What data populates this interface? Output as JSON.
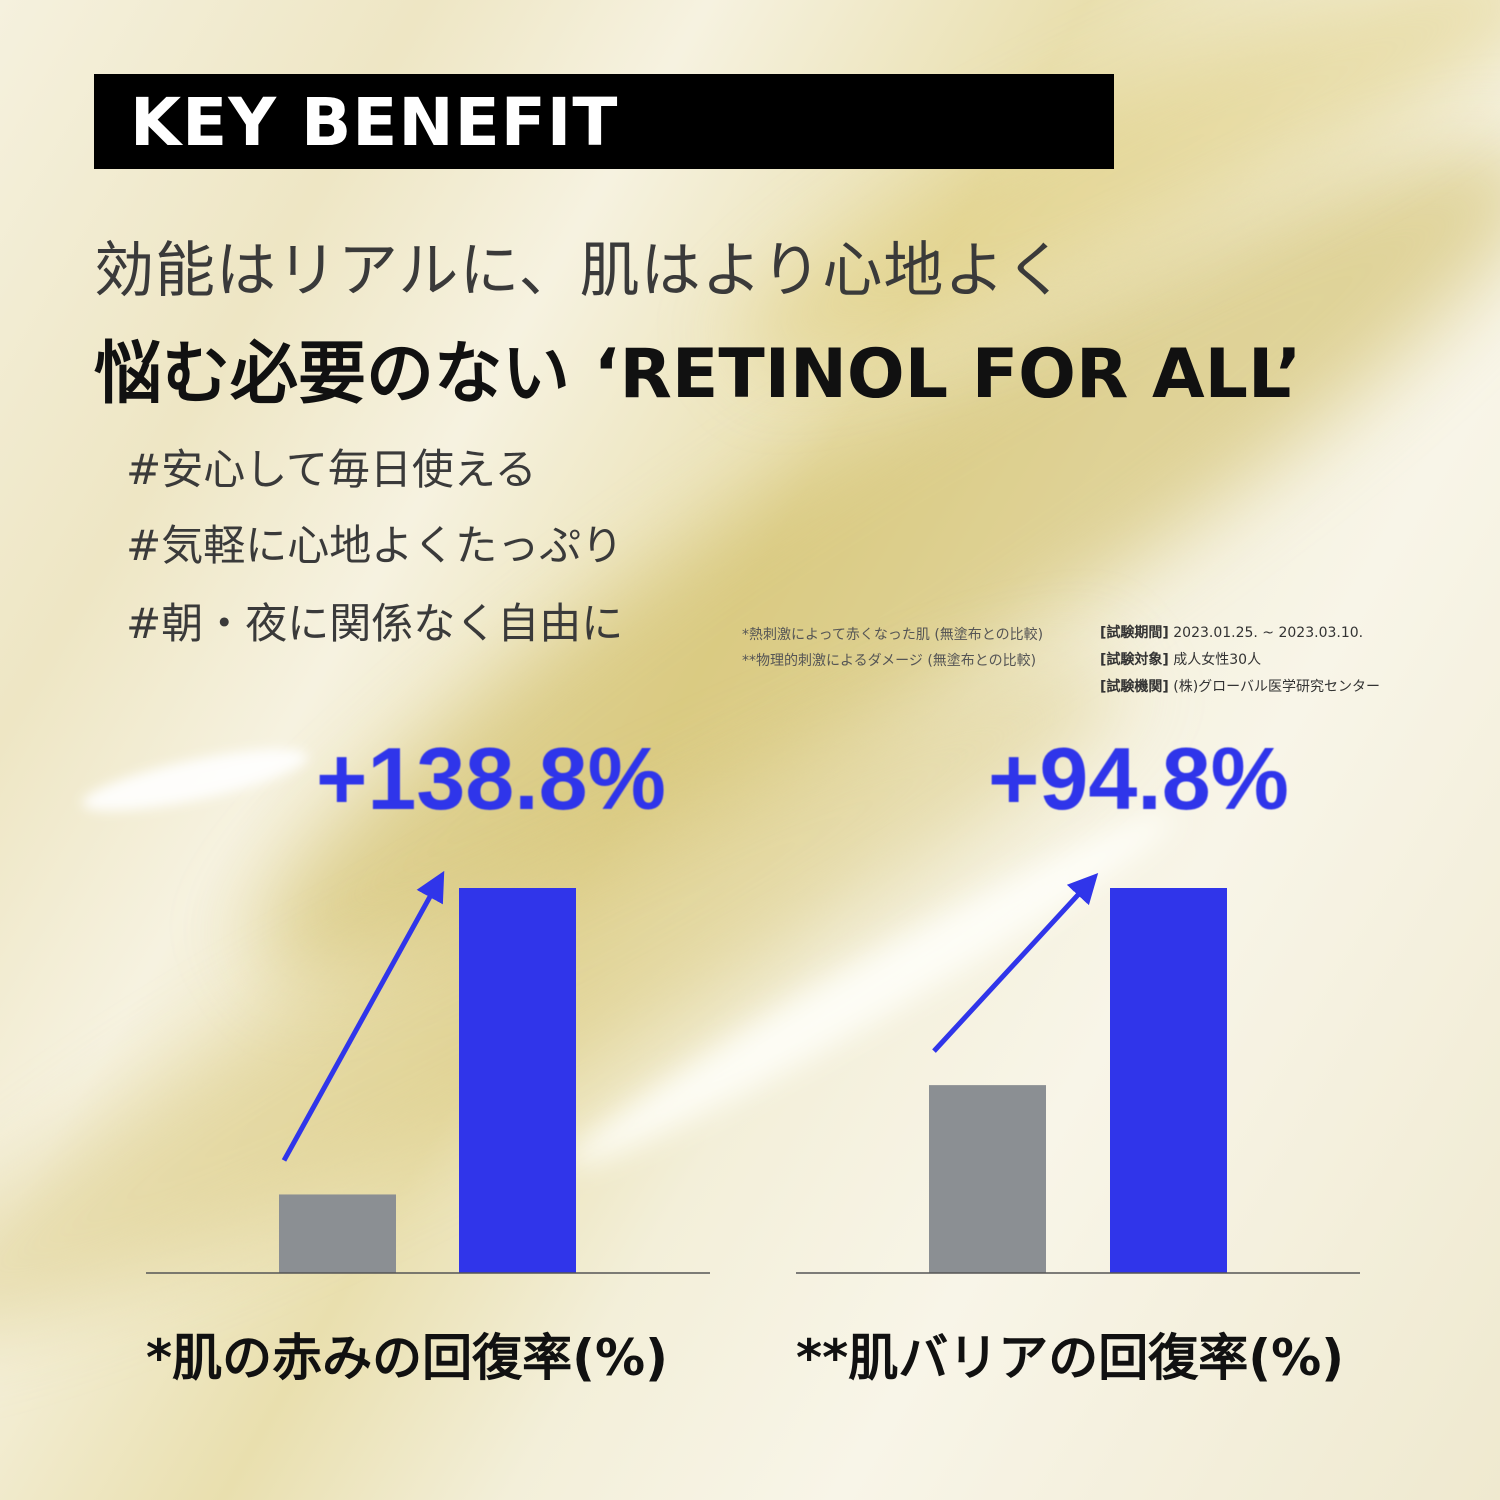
{
  "header": {
    "badge": "KEY BENEFIT",
    "line1": "効能はリアルに、肌はより心地よく",
    "line2": "悩む必要のない ‘RETINOL FOR ALL’"
  },
  "hashtags": [
    "#安心して毎日使える",
    "#気軽に心地よくたっぷり",
    "#朝・夜に関係なく自由に"
  ],
  "notes": [
    "*熱刺激によって赤くなった肌 (無塗布との比較)",
    "**物理的刺激によるダメージ (無塗布との比較)"
  ],
  "test_info": [
    {
      "label": "[試験期間]",
      "value": "2023.01.25. ~ 2023.03.10."
    },
    {
      "label": "[試験対象]",
      "value": "成人女性30人"
    },
    {
      "label": "[試験機関]",
      "value": "(株)グローバル医学研究センター"
    }
  ],
  "colors": {
    "before_bar": "#8b8f93",
    "after_bar": "#3035ea",
    "axis": "#555555",
    "arrow": "#3035ea"
  },
  "chart_data": [
    {
      "type": "bar",
      "title": "*肌の赤みの回復率(%)",
      "annotation": "+138.8%",
      "categories": [
        "",
        ""
      ],
      "values": [
        20.4,
        100
      ],
      "ylim": [
        0,
        100
      ],
      "arrow": "up-right"
    },
    {
      "type": "bar",
      "title": "**肌バリアの回復率(%)",
      "annotation": "+94.8%",
      "categories": [
        "",
        ""
      ],
      "values": [
        48.8,
        100
      ],
      "ylim": [
        0,
        100
      ],
      "arrow": "up-right"
    }
  ]
}
